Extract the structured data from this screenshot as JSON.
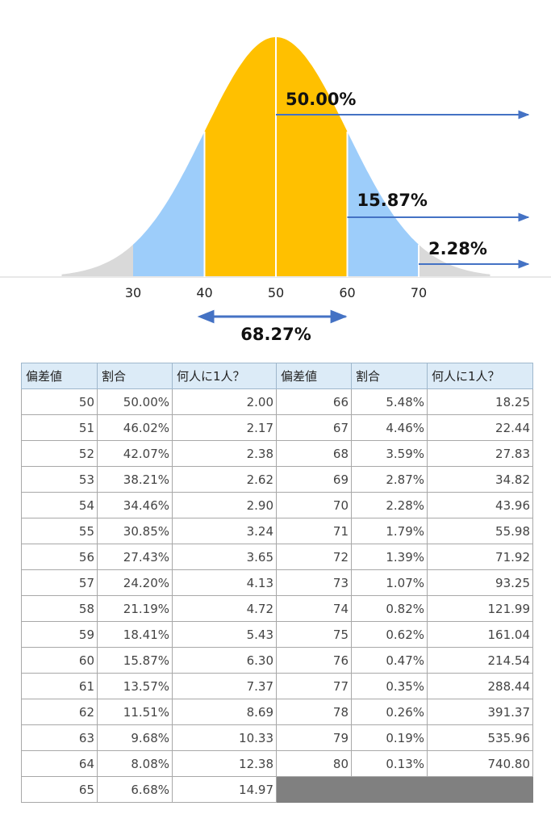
{
  "chart_data": {
    "type": "area",
    "title": "",
    "xlabel": "",
    "ylabel": "",
    "x_ticks": [
      30,
      40,
      50,
      60,
      70
    ],
    "mean": 50,
    "sd": 10,
    "regions": [
      {
        "from": 20,
        "to": 30,
        "color": "#d9d9d9"
      },
      {
        "from": 30,
        "to": 40,
        "color": "#9dcdfa"
      },
      {
        "from": 40,
        "to": 60,
        "color": "#ffc000"
      },
      {
        "from": 60,
        "to": 70,
        "color": "#9dcdfa"
      },
      {
        "from": 70,
        "to": 80,
        "color": "#d9d9d9"
      }
    ],
    "annotations": [
      {
        "label": "50.00%",
        "from_x": 50
      },
      {
        "label": "15.87%",
        "from_x": 60
      },
      {
        "label": "2.28%",
        "from_x": 70
      }
    ],
    "center_annotation": {
      "label": "68.27%",
      "from_x": 40,
      "to_x": 60
    },
    "arrow_color": "#4472c4"
  },
  "table": {
    "headers": [
      "偏差値",
      "割合",
      "何人に1人？",
      "偏差値",
      "割合",
      "何人に1人？"
    ],
    "rows": [
      [
        "50",
        "50.00%",
        "2.00",
        "66",
        "5.48%",
        "18.25"
      ],
      [
        "51",
        "46.02%",
        "2.17",
        "67",
        "4.46%",
        "22.44"
      ],
      [
        "52",
        "42.07%",
        "2.38",
        "68",
        "3.59%",
        "27.83"
      ],
      [
        "53",
        "38.21%",
        "2.62",
        "69",
        "2.87%",
        "34.82"
      ],
      [
        "54",
        "34.46%",
        "2.90",
        "70",
        "2.28%",
        "43.96"
      ],
      [
        "55",
        "30.85%",
        "3.24",
        "71",
        "1.79%",
        "55.98"
      ],
      [
        "56",
        "27.43%",
        "3.65",
        "72",
        "1.39%",
        "71.92"
      ],
      [
        "57",
        "24.20%",
        "4.13",
        "73",
        "1.07%",
        "93.25"
      ],
      [
        "58",
        "21.19%",
        "4.72",
        "74",
        "0.82%",
        "121.99"
      ],
      [
        "59",
        "18.41%",
        "5.43",
        "75",
        "0.62%",
        "161.04"
      ],
      [
        "60",
        "15.87%",
        "6.30",
        "76",
        "0.47%",
        "214.54"
      ],
      [
        "61",
        "13.57%",
        "7.37",
        "77",
        "0.35%",
        "288.44"
      ],
      [
        "62",
        "11.51%",
        "8.69",
        "78",
        "0.26%",
        "391.37"
      ],
      [
        "63",
        "9.68%",
        "10.33",
        "79",
        "0.19%",
        "535.96"
      ],
      [
        "64",
        "8.08%",
        "12.38",
        "80",
        "0.13%",
        "740.80"
      ],
      [
        "65",
        "6.68%",
        "14.97",
        "",
        "",
        ""
      ]
    ]
  }
}
